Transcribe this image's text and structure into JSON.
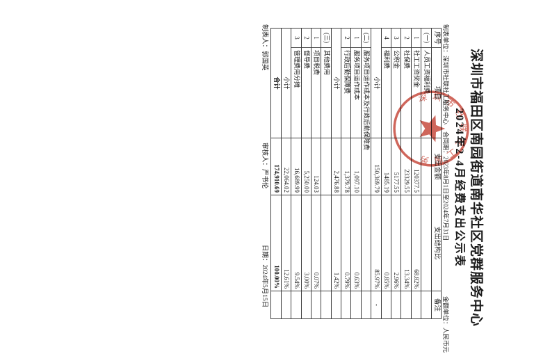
{
  "document": {
    "title_line1": "深圳市福田区南园街道南华社区党群服务中心",
    "title_line2": "2024年2-4月经费支出公示表",
    "info": {
      "prepared_by": "制表单位：深圳市社联社工服务中心",
      "contract_period": "合同期：2023年8月1日至2024年7月31日",
      "currency_unit": "金额单位：人民币元"
    },
    "table": {
      "headers": [
        "序号",
        "项目",
        "支出金额",
        "支出结构比",
        "备注"
      ],
      "rows": [
        {
          "no": "(一)",
          "item": "人员工资福利费",
          "amount": "",
          "ratio": "",
          "note": "",
          "type": "section"
        },
        {
          "no": "1",
          "item": "社工工资奖金",
          "amount": "120377.5",
          "ratio": "68.82%",
          "note": "",
          "type": "data"
        },
        {
          "no": "2",
          "item": "社保费",
          "amount": "23329.55",
          "ratio": "13.34%",
          "note": "",
          "type": "data"
        },
        {
          "no": "3",
          "item": "公积金",
          "amount": "5177.55",
          "ratio": "2.96%",
          "note": "",
          "type": "data"
        },
        {
          "no": "4",
          "item": "福利费",
          "amount": "1485.19",
          "ratio": "0.85%",
          "note": "",
          "type": "data"
        },
        {
          "no": "小计",
          "item": "",
          "amount": "150,369.79",
          "ratio": "85.97%",
          "note": "-",
          "type": "subtotal"
        },
        {
          "no": "(二)",
          "item": "服务项目运作成本及行政后勤保障费",
          "amount": "",
          "ratio": "",
          "note": "",
          "type": "section"
        },
        {
          "no": "1",
          "item": "服务项目运作成本",
          "amount": "1,097.10",
          "ratio": "0.63%",
          "note": "",
          "type": "data"
        },
        {
          "no": "2",
          "item": "行政后勤保障费",
          "amount": "1,379.78",
          "ratio": "0.79%",
          "note": "",
          "type": "data"
        },
        {
          "no": "小计",
          "item": "",
          "amount": "2,476.88",
          "ratio": "1.42%",
          "note": "",
          "type": "subtotal"
        },
        {
          "no": "(三)",
          "item": "其他费用",
          "amount": "",
          "ratio": "",
          "note": "",
          "type": "section"
        },
        {
          "no": "1",
          "item": "项目税费",
          "amount": "124.03",
          "ratio": "0.07%",
          "note": "",
          "type": "data"
        },
        {
          "no": "2",
          "item": "督导费",
          "amount": "5,250.00",
          "ratio": "3.00%",
          "note": "",
          "type": "data"
        },
        {
          "no": "3",
          "item": "管理费用分摊",
          "amount": "16,689.99",
          "ratio": "9.54%",
          "note": "",
          "type": "data"
        },
        {
          "no": "小计",
          "item": "",
          "amount": "22,064.02",
          "ratio": "12.61%",
          "note": "",
          "type": "subtotal"
        },
        {
          "no": "合计",
          "item": "",
          "amount": "174,910.69",
          "ratio": "100.00%",
          "note": "",
          "type": "total"
        }
      ]
    },
    "footer": {
      "preparer": "制表人：郭国英",
      "reviewer": "审核人：严书伦",
      "date": "日期：2024年5月15日"
    },
    "stamp": {
      "org_name": "深圳市社联社工服务中心",
      "color": "#c23a2c"
    }
  }
}
